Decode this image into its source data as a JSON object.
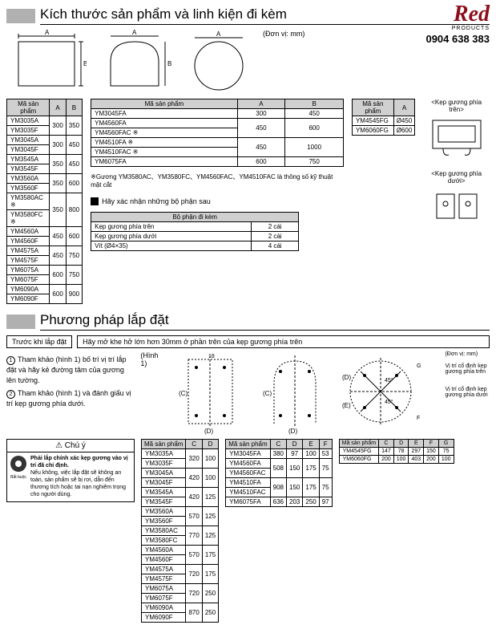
{
  "logo": {
    "brand": "Red",
    "sub": "PRODUCTS",
    "phone": "0904 638 383"
  },
  "unit": "(Đơn vị: mm)",
  "sec1": {
    "title": "Kích thước sản phẩm và linh kiện đi kèm",
    "t1": {
      "hdr": [
        "Mã sản phẩm",
        "A",
        "B"
      ],
      "rows": [
        [
          "YM3035A",
          "300",
          "350"
        ],
        [
          "YM3035F",
          "",
          ""
        ],
        [
          "YM3045A",
          "300",
          "450"
        ],
        [
          "YM3045F",
          "",
          ""
        ],
        [
          "YM3545A",
          "350",
          "450"
        ],
        [
          "YM3545F",
          "",
          ""
        ],
        [
          "YM3560A",
          "350",
          "600"
        ],
        [
          "YM3560F",
          "",
          ""
        ],
        [
          "YM3580AC  ※",
          "350",
          "800"
        ],
        [
          "YM3580FC  ※",
          "",
          ""
        ],
        [
          "YM4560A",
          "450",
          "600"
        ],
        [
          "YM4560F",
          "",
          ""
        ],
        [
          "YM4575A",
          "450",
          "750"
        ],
        [
          "YM4575F",
          "",
          ""
        ],
        [
          "YM6075A",
          "600",
          "750"
        ],
        [
          "YM6075F",
          "",
          ""
        ],
        [
          "YM6090A",
          "600",
          "900"
        ],
        [
          "YM6090F",
          "",
          ""
        ]
      ]
    },
    "t2": {
      "hdr": [
        "Mã sản phẩm",
        "A",
        "B"
      ],
      "rows": [
        [
          "YM3045FA",
          "300",
          "450"
        ],
        [
          "YM4560FA",
          "450",
          "600"
        ],
        [
          "YM4560FAC  ※",
          "",
          ""
        ],
        [
          "YM4510FA  ※",
          "450",
          "1000"
        ],
        [
          "YM4510FAC  ※",
          "",
          ""
        ],
        [
          "YM6075FA",
          "600",
          "750"
        ]
      ]
    },
    "t3": {
      "hdr": [
        "Mã sản phẩm",
        "A"
      ],
      "rows": [
        [
          "YM4545FG",
          "Ø450"
        ],
        [
          "YM6060FG",
          "Ø600"
        ]
      ]
    },
    "note": "※Gương YM3580AC、YM3580FC、YM4560FAC、YM4510FAC là thông số kỹ thuật mặt cắt",
    "parts": {
      "title": "Hãy xác nhận những bộ phận sau",
      "hdr": "Bộ phận đi kèm",
      "rows": [
        [
          "Kẹp gương phía trên",
          "2 cái"
        ],
        [
          "Kẹp gương phía dưới",
          "2 cái"
        ],
        [
          "Vít (Ø4×35)",
          "4 cái"
        ]
      ]
    },
    "clip_top": "<Kẹp gương phía trên>",
    "clip_bot": "<Kẹp gương phía dưới>"
  },
  "sec2": {
    "title": "Phương pháp lắp đặt",
    "before": "Trước khi lắp đặt",
    "hint": "Hãy mở khe hở lớn hơn 30mm ở phần trên của kẹp gương phía trên",
    "fig": "(Hình 1)",
    "unit": "(Đơn vị: mm)",
    "step1": "Tham khảo (hình 1) bố trí vị trí lắp đặt và hãy kẻ đường tâm của gương lên tường.",
    "step2": "Tham khảo (hình 1) và đánh giấu vị trí kẹp gương phía dưới.",
    "anno1": "Vị trí cố định kẹp gương phía trên",
    "anno2": "Vị trí cố định kẹp gương phía dưới",
    "caution": {
      "title": "⚠ Chú ý",
      "bold": "Phải lắp chính xác kẹp gương vào vị trí đã chỉ định.",
      "text": "Nếu không, việc lắp đặt sẽ không an toàn, sản phẩm sẽ bị rơi, dẫn đến thương tích hoặc tai nạn nghiêm trọng cho người dùng.",
      "ico": "Bắt buộc"
    },
    "t1": {
      "hdr": [
        "Mã sản phẩm",
        "C",
        "D"
      ],
      "rows": [
        [
          "YM3035A",
          "320",
          "100"
        ],
        [
          "YM3035F",
          "",
          ""
        ],
        [
          "YM3045A",
          "420",
          "100"
        ],
        [
          "YM3045F",
          "",
          ""
        ],
        [
          "YM3545A",
          "420",
          "125"
        ],
        [
          "YM3545F",
          "",
          ""
        ],
        [
          "YM3560A",
          "570",
          "125"
        ],
        [
          "YM3560F",
          "",
          ""
        ],
        [
          "YM3580AC",
          "770",
          "125"
        ],
        [
          "YM3580FC",
          "",
          ""
        ],
        [
          "YM4560A",
          "570",
          "175"
        ],
        [
          "YM4560F",
          "",
          ""
        ],
        [
          "YM4575A",
          "720",
          "175"
        ],
        [
          "YM4575F",
          "",
          ""
        ],
        [
          "YM6075A",
          "720",
          "250"
        ],
        [
          "YM6075F",
          "",
          ""
        ],
        [
          "YM6090A",
          "870",
          "250"
        ],
        [
          "YM6090F",
          "",
          ""
        ]
      ]
    },
    "t2": {
      "hdr": [
        "Mã sản phẩm",
        "C",
        "D",
        "E",
        "F"
      ],
      "rows": [
        [
          "YM3045FA",
          "380",
          "97",
          "100",
          "53"
        ],
        [
          "YM4560FA",
          "508",
          "150",
          "175",
          "75"
        ],
        [
          "YM4560FAC",
          "",
          "",
          "",
          ""
        ],
        [
          "YM4510FA",
          "908",
          "150",
          "175",
          "75"
        ],
        [
          "YM4510FAC",
          "",
          "",
          "",
          ""
        ],
        [
          "YM6075FA",
          "636",
          "203",
          "250",
          "97"
        ]
      ]
    },
    "t3": {
      "hdr": [
        "Mã sản phẩm",
        "C",
        "D",
        "E",
        "F",
        "G"
      ],
      "rows": [
        [
          "YM4545FG",
          "147",
          "78",
          "297",
          "150",
          "75"
        ],
        [
          "YM6060FG",
          "200",
          "100",
          "403",
          "200",
          "100"
        ]
      ]
    }
  }
}
